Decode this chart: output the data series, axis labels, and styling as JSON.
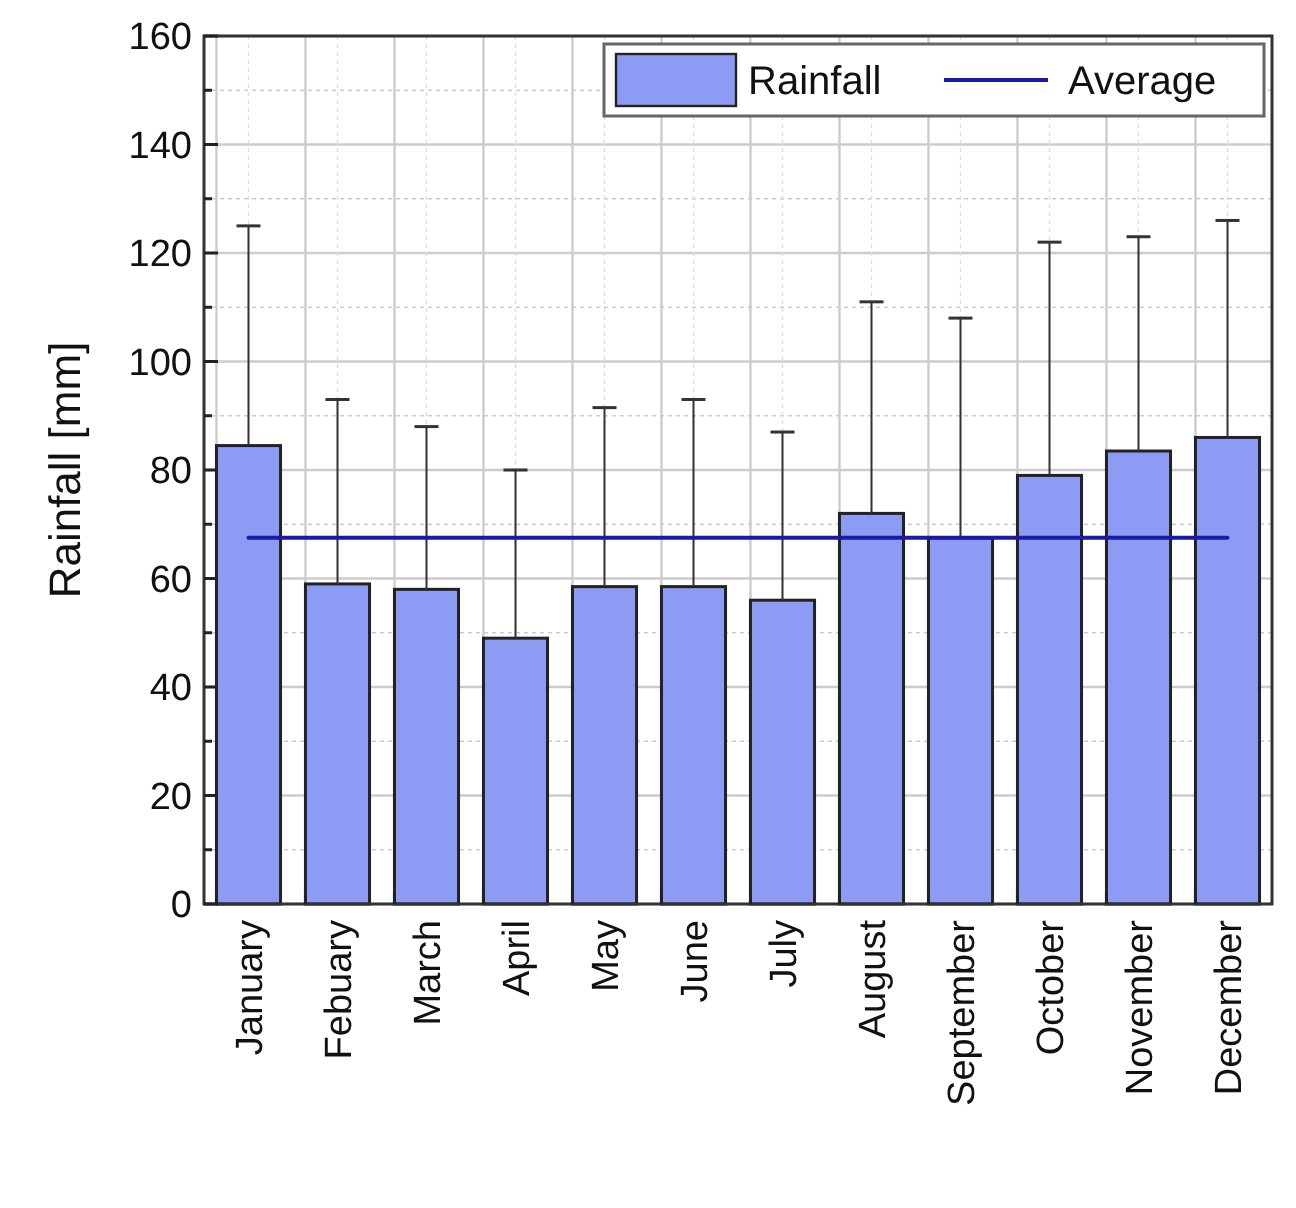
{
  "chart_data": {
    "type": "bar",
    "ylabel": "Rainfall [mm]",
    "categories": [
      "January",
      "Febuary",
      "March",
      "April",
      "May",
      "June",
      "July",
      "August",
      "September",
      "October",
      "November",
      "December"
    ],
    "series": [
      {
        "name": "Rainfall",
        "color": "#8c9cf5",
        "values": [
          84.5,
          59,
          58,
          49,
          58.5,
          58.5,
          56,
          72,
          67.5,
          79,
          83.5,
          86
        ],
        "errors": [
          [
            84.5,
            125
          ],
          [
            59,
            93
          ],
          [
            58,
            88
          ],
          [
            49,
            80
          ],
          [
            58.5,
            91.5
          ],
          [
            58.5,
            93
          ],
          [
            56,
            87
          ],
          [
            72,
            111
          ],
          [
            67.5,
            108
          ],
          [
            79,
            122
          ],
          [
            83.5,
            123
          ],
          [
            86,
            126
          ]
        ]
      },
      {
        "name": "Average",
        "type": "line",
        "color": "#1a1aa8",
        "values": [
          67.5,
          67.5,
          67.5,
          67.5,
          67.5,
          67.5,
          67.5,
          67.5,
          67.5,
          67.5,
          67.5,
          67.5
        ]
      }
    ],
    "ylim": [
      0,
      160
    ],
    "yticks": [
      0,
      {
        "value": 10,
        "label": null
      },
      20,
      {
        "value": 30,
        "label": null
      },
      40,
      {
        "value": 50,
        "label": null
      },
      60,
      {
        "value": 70,
        "label": null
      },
      80,
      {
        "value": 90,
        "label": null
      },
      100,
      {
        "value": 110,
        "label": null
      },
      120,
      {
        "value": 130,
        "label": null
      },
      140,
      {
        "value": 150,
        "label": null
      },
      160
    ],
    "grid": true,
    "legend": "top right"
  }
}
